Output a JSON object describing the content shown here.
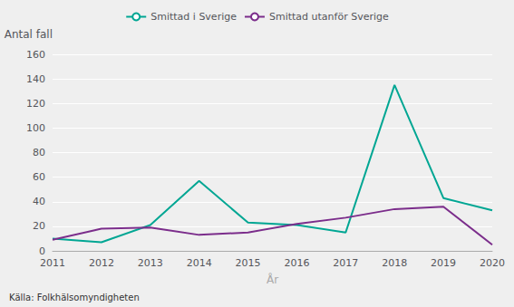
{
  "chart_data": {
    "type": "line",
    "x": [
      2011,
      2012,
      2013,
      2014,
      2015,
      2016,
      2017,
      2018,
      2019,
      2020
    ],
    "xlabel": "År",
    "ylabel": "Antal fall",
    "annotation": "Källa: Folkhälsomyndigheten",
    "series": [
      {
        "name": "Smittad i Sverige",
        "color": "#00A693",
        "values": [
          10,
          7,
          21,
          57,
          23,
          21,
          15,
          135,
          43,
          33
        ]
      },
      {
        "name": "Smittad utanför Sverige",
        "color": "#7B2D8B",
        "values": [
          9,
          18,
          19,
          13,
          15,
          22,
          27,
          34,
          36,
          5
        ]
      }
    ],
    "xlim": [
      2011,
      2020
    ],
    "xticks": [
      2011,
      2012,
      2013,
      2014,
      2015,
      2016,
      2017,
      2018,
      2019,
      2020
    ],
    "ylim": [
      0,
      160
    ],
    "yticks": [
      0,
      20,
      40,
      60,
      80,
      100,
      120,
      140,
      160
    ],
    "grid": true,
    "legend": "top"
  }
}
